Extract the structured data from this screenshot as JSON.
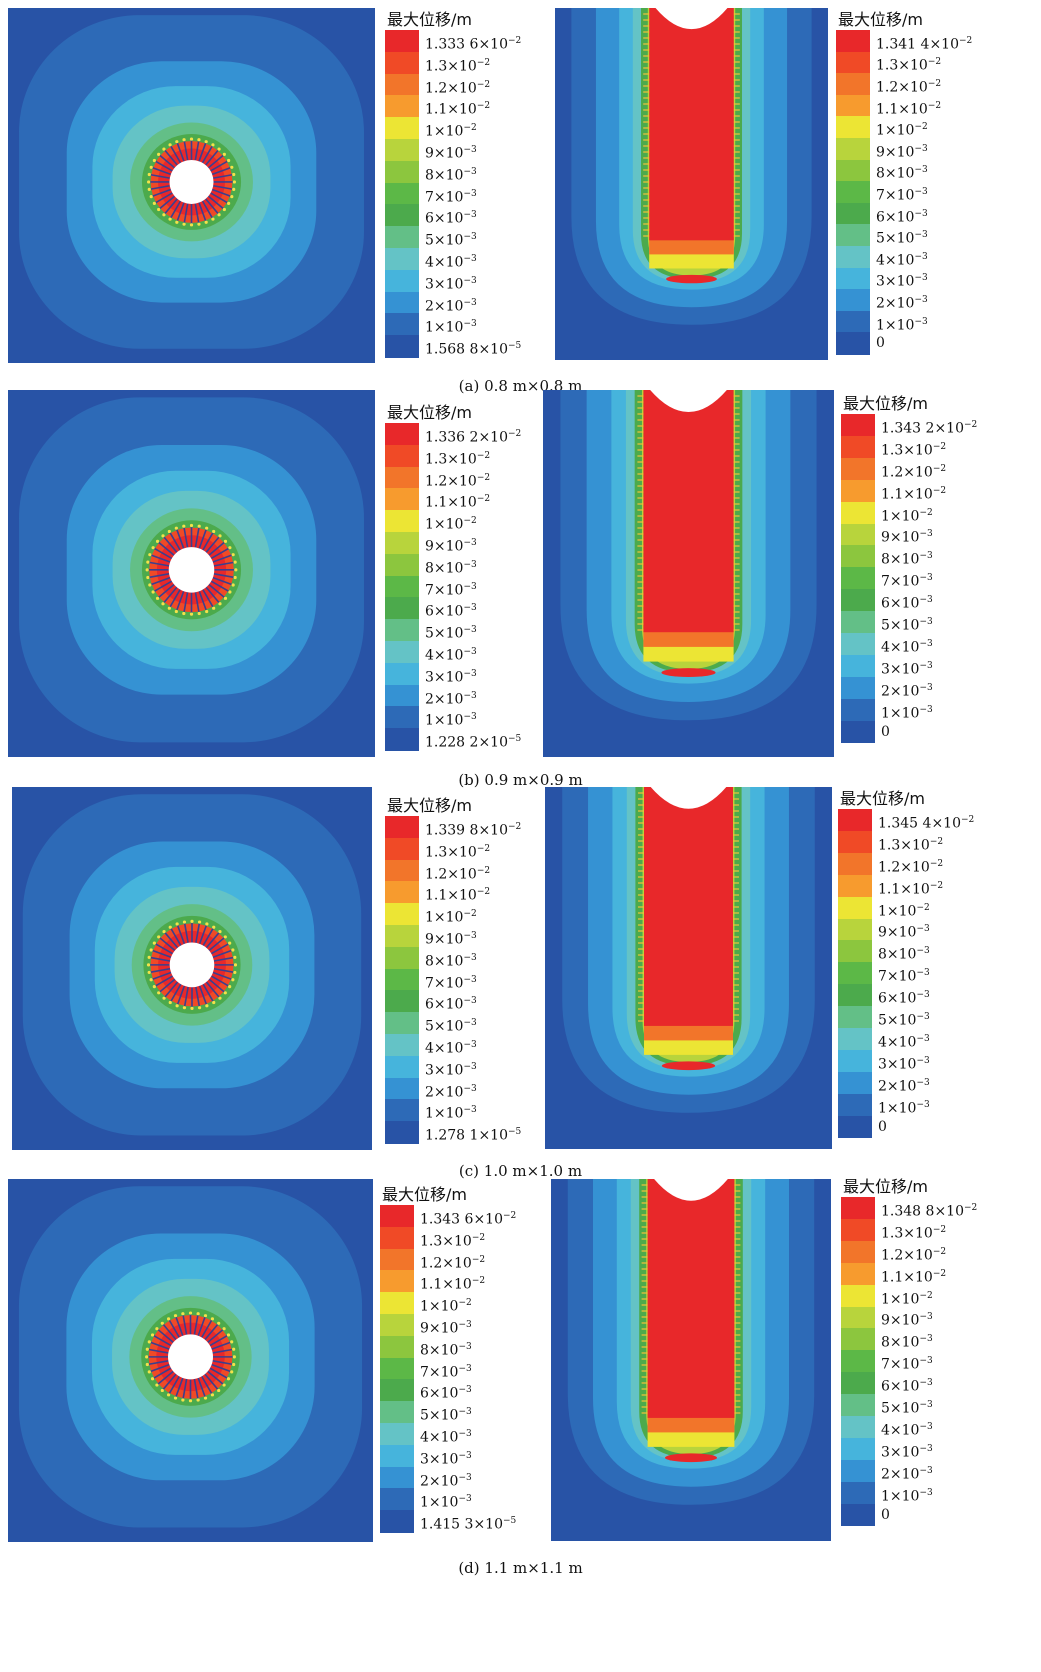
{
  "legend_title": "最大位移/m",
  "colors": [
    "#e8282a",
    "#f04a26",
    "#f2752a",
    "#f79b2e",
    "#ece534",
    "#b8d43c",
    "#8cc63e",
    "#5cb847",
    "#4caa4c",
    "#63bf87",
    "#64c3c6",
    "#46b4dc",
    "#3592d3",
    "#2d6ab7",
    "#2853a6"
  ],
  "panels": [
    {
      "caption": "(a) 0.8 m×0.8 m",
      "left_legend": [
        {
          "m": "1.333 6",
          "e": "-2"
        },
        {
          "m": "1.3",
          "e": "-2"
        },
        {
          "m": "1.2",
          "e": "-2"
        },
        {
          "m": "1.1",
          "e": "-2"
        },
        {
          "m": "1",
          "e": "-2"
        },
        {
          "m": "9",
          "e": "-3"
        },
        {
          "m": "8",
          "e": "-3"
        },
        {
          "m": "7",
          "e": "-3"
        },
        {
          "m": "6",
          "e": "-3"
        },
        {
          "m": "5",
          "e": "-3"
        },
        {
          "m": "4",
          "e": "-3"
        },
        {
          "m": "3",
          "e": "-3"
        },
        {
          "m": "2",
          "e": "-3"
        },
        {
          "m": "1",
          "e": "-3"
        },
        {
          "m": "1.568 8",
          "e": "-5"
        }
      ],
      "right_legend": [
        {
          "m": "1.341 4",
          "e": "-2"
        },
        {
          "m": "1.3",
          "e": "-2"
        },
        {
          "m": "1.2",
          "e": "-2"
        },
        {
          "m": "1.1",
          "e": "-2"
        },
        {
          "m": "1",
          "e": "-2"
        },
        {
          "m": "9",
          "e": "-3"
        },
        {
          "m": "8",
          "e": "-3"
        },
        {
          "m": "7",
          "e": "-3"
        },
        {
          "m": "6",
          "e": "-3"
        },
        {
          "m": "5",
          "e": "-3"
        },
        {
          "m": "4",
          "e": "-3"
        },
        {
          "m": "3",
          "e": "-3"
        },
        {
          "m": "2",
          "e": "-3"
        },
        {
          "m": "1",
          "e": "-3"
        },
        {
          "m": "0",
          "e": ""
        }
      ]
    },
    {
      "caption": "(b) 0.9 m×0.9 m",
      "left_legend": [
        {
          "m": "1.336 2",
          "e": "-2"
        },
        {
          "m": "1.3",
          "e": "-2"
        },
        {
          "m": "1.2",
          "e": "-2"
        },
        {
          "m": "1.1",
          "e": "-2"
        },
        {
          "m": "1",
          "e": "-2"
        },
        {
          "m": "9",
          "e": "-3"
        },
        {
          "m": "8",
          "e": "-3"
        },
        {
          "m": "7",
          "e": "-3"
        },
        {
          "m": "6",
          "e": "-3"
        },
        {
          "m": "5",
          "e": "-3"
        },
        {
          "m": "4",
          "e": "-3"
        },
        {
          "m": "3",
          "e": "-3"
        },
        {
          "m": "2",
          "e": "-3"
        },
        {
          "m": "1",
          "e": "-3"
        },
        {
          "m": "1.228 2",
          "e": "-5"
        }
      ],
      "right_legend": [
        {
          "m": "1.343 2",
          "e": "-2"
        },
        {
          "m": "1.3",
          "e": "-2"
        },
        {
          "m": "1.2",
          "e": "-2"
        },
        {
          "m": "1.1",
          "e": "-2"
        },
        {
          "m": "1",
          "e": "-2"
        },
        {
          "m": "9",
          "e": "-3"
        },
        {
          "m": "8",
          "e": "-3"
        },
        {
          "m": "7",
          "e": "-3"
        },
        {
          "m": "6",
          "e": "-3"
        },
        {
          "m": "5",
          "e": "-3"
        },
        {
          "m": "4",
          "e": "-3"
        },
        {
          "m": "3",
          "e": "-3"
        },
        {
          "m": "2",
          "e": "-3"
        },
        {
          "m": "1",
          "e": "-3"
        },
        {
          "m": "0",
          "e": ""
        }
      ]
    },
    {
      "caption": "(c) 1.0 m×1.0 m",
      "left_legend": [
        {
          "m": "1.339 8",
          "e": "-2"
        },
        {
          "m": "1.3",
          "e": "-2"
        },
        {
          "m": "1.2",
          "e": "-2"
        },
        {
          "m": "1.1",
          "e": "-2"
        },
        {
          "m": "1",
          "e": "-2"
        },
        {
          "m": "9",
          "e": "-3"
        },
        {
          "m": "8",
          "e": "-3"
        },
        {
          "m": "7",
          "e": "-3"
        },
        {
          "m": "6",
          "e": "-3"
        },
        {
          "m": "5",
          "e": "-3"
        },
        {
          "m": "4",
          "e": "-3"
        },
        {
          "m": "3",
          "e": "-3"
        },
        {
          "m": "2",
          "e": "-3"
        },
        {
          "m": "1",
          "e": "-3"
        },
        {
          "m": "1.278 1",
          "e": "-5"
        }
      ],
      "right_legend": [
        {
          "m": "1.345 4",
          "e": "-2"
        },
        {
          "m": "1.3",
          "e": "-2"
        },
        {
          "m": "1.2",
          "e": "-2"
        },
        {
          "m": "1.1",
          "e": "-2"
        },
        {
          "m": "1",
          "e": "-2"
        },
        {
          "m": "9",
          "e": "-3"
        },
        {
          "m": "8",
          "e": "-3"
        },
        {
          "m": "7",
          "e": "-3"
        },
        {
          "m": "6",
          "e": "-3"
        },
        {
          "m": "5",
          "e": "-3"
        },
        {
          "m": "4",
          "e": "-3"
        },
        {
          "m": "3",
          "e": "-3"
        },
        {
          "m": "2",
          "e": "-3"
        },
        {
          "m": "1",
          "e": "-3"
        },
        {
          "m": "0",
          "e": ""
        }
      ]
    },
    {
      "caption": "(d) 1.1 m×1.1 m",
      "left_legend": [
        {
          "m": "1.343 6",
          "e": "-2"
        },
        {
          "m": "1.3",
          "e": "-2"
        },
        {
          "m": "1.2",
          "e": "-2"
        },
        {
          "m": "1.1",
          "e": "-2"
        },
        {
          "m": "1",
          "e": "-2"
        },
        {
          "m": "9",
          "e": "-3"
        },
        {
          "m": "8",
          "e": "-3"
        },
        {
          "m": "7",
          "e": "-3"
        },
        {
          "m": "6",
          "e": "-3"
        },
        {
          "m": "5",
          "e": "-3"
        },
        {
          "m": "4",
          "e": "-3"
        },
        {
          "m": "3",
          "e": "-3"
        },
        {
          "m": "2",
          "e": "-3"
        },
        {
          "m": "1",
          "e": "-3"
        },
        {
          "m": "1.415 3",
          "e": "-5"
        }
      ],
      "right_legend": [
        {
          "m": "1.348 8",
          "e": "-2"
        },
        {
          "m": "1.3",
          "e": "-2"
        },
        {
          "m": "1.2",
          "e": "-2"
        },
        {
          "m": "1.1",
          "e": "-2"
        },
        {
          "m": "1",
          "e": "-2"
        },
        {
          "m": "9",
          "e": "-3"
        },
        {
          "m": "8",
          "e": "-3"
        },
        {
          "m": "7",
          "e": "-3"
        },
        {
          "m": "6",
          "e": "-3"
        },
        {
          "m": "5",
          "e": "-3"
        },
        {
          "m": "4",
          "e": "-3"
        },
        {
          "m": "3",
          "e": "-3"
        },
        {
          "m": "2",
          "e": "-3"
        },
        {
          "m": "1",
          "e": "-3"
        },
        {
          "m": "0",
          "e": ""
        }
      ]
    }
  ]
}
